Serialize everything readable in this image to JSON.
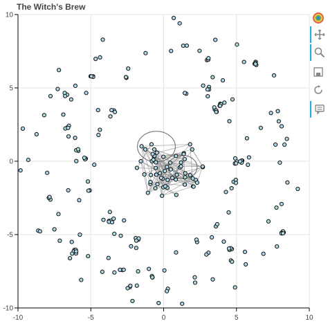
{
  "chart_data": {
    "type": "network-graph",
    "title": "The Witch's Brew",
    "xlabel": "",
    "ylabel": "",
    "xlim": [
      -10,
      10
    ],
    "ylim": [
      -10,
      10
    ],
    "xticks": [
      "-10",
      "-5",
      "0",
      "5",
      "10"
    ],
    "yticks": [
      "-10",
      "-5",
      "0",
      "5",
      "10"
    ],
    "grid": true,
    "node_color": "#add8e6",
    "node_outline": "#111111",
    "edge_color": "#999999",
    "center_node_count": 60,
    "outer_ring_node_count": 210,
    "radial_extent_max": 10
  },
  "toolbar": {
    "items": [
      {
        "name": "bokeh-logo-icon",
        "active": false
      },
      {
        "name": "pan-icon",
        "active": true
      },
      {
        "name": "wheel-zoom-icon",
        "active": true
      },
      {
        "name": "save-icon",
        "active": false
      },
      {
        "name": "reset-icon",
        "active": false
      },
      {
        "name": "hover-icon",
        "active": true
      }
    ]
  }
}
